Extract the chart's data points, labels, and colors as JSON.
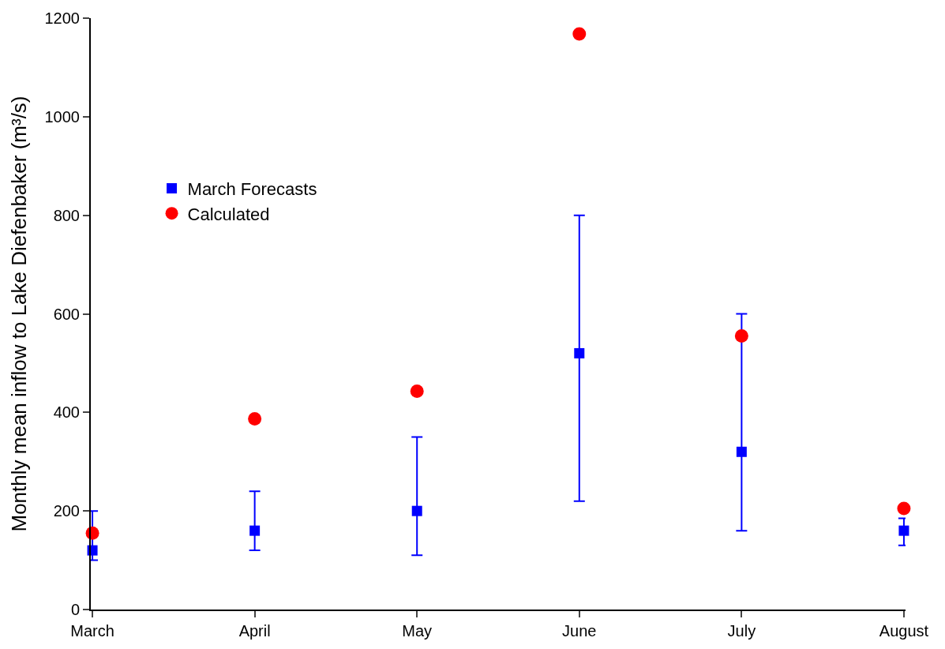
{
  "chart_data": {
    "type": "scatter",
    "ylabel": "Monthly mean inflow to Lake Diefenbaker (m³/s)",
    "categories": [
      "March",
      "April",
      "May",
      "June",
      "July",
      "August"
    ],
    "series": [
      {
        "name": "March Forecasts",
        "color": "#0000ff",
        "marker": "square",
        "values": [
          120,
          160,
          200,
          520,
          320,
          160
        ],
        "errors": [
          [
            100,
            200
          ],
          [
            120,
            240
          ],
          [
            110,
            350
          ],
          [
            220,
            800
          ],
          [
            160,
            600
          ],
          [
            130,
            185
          ]
        ]
      },
      {
        "name": "Calculated",
        "color": "#ff0000",
        "marker": "circle",
        "values": [
          155,
          387,
          443,
          1168,
          555,
          205
        ]
      }
    ],
    "ylim": [
      0,
      1200
    ],
    "yticks": [
      0,
      200,
      400,
      600,
      800,
      1000,
      1200
    ],
    "legend": "top left"
  }
}
